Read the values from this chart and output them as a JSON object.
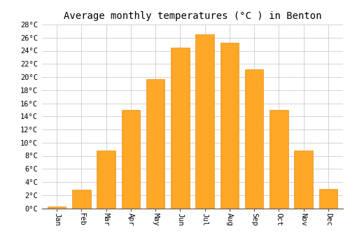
{
  "title": "Average monthly temperatures (°C ) in Benton",
  "months": [
    "Jan",
    "Feb",
    "Mar",
    "Apr",
    "May",
    "Jun",
    "Jul",
    "Aug",
    "Sep",
    "Oct",
    "Nov",
    "Dec"
  ],
  "values": [
    0.3,
    2.8,
    8.8,
    15.0,
    19.7,
    24.5,
    26.5,
    25.2,
    21.2,
    15.0,
    8.8,
    2.9
  ],
  "bar_color": "#FFA726",
  "bar_edge_color": "#E08000",
  "ylim": [
    0,
    28
  ],
  "ytick_step": 2,
  "background_color": "#ffffff",
  "grid_color": "#cccccc",
  "title_fontsize": 10,
  "tick_fontsize": 7.5,
  "label_rotation": 270
}
